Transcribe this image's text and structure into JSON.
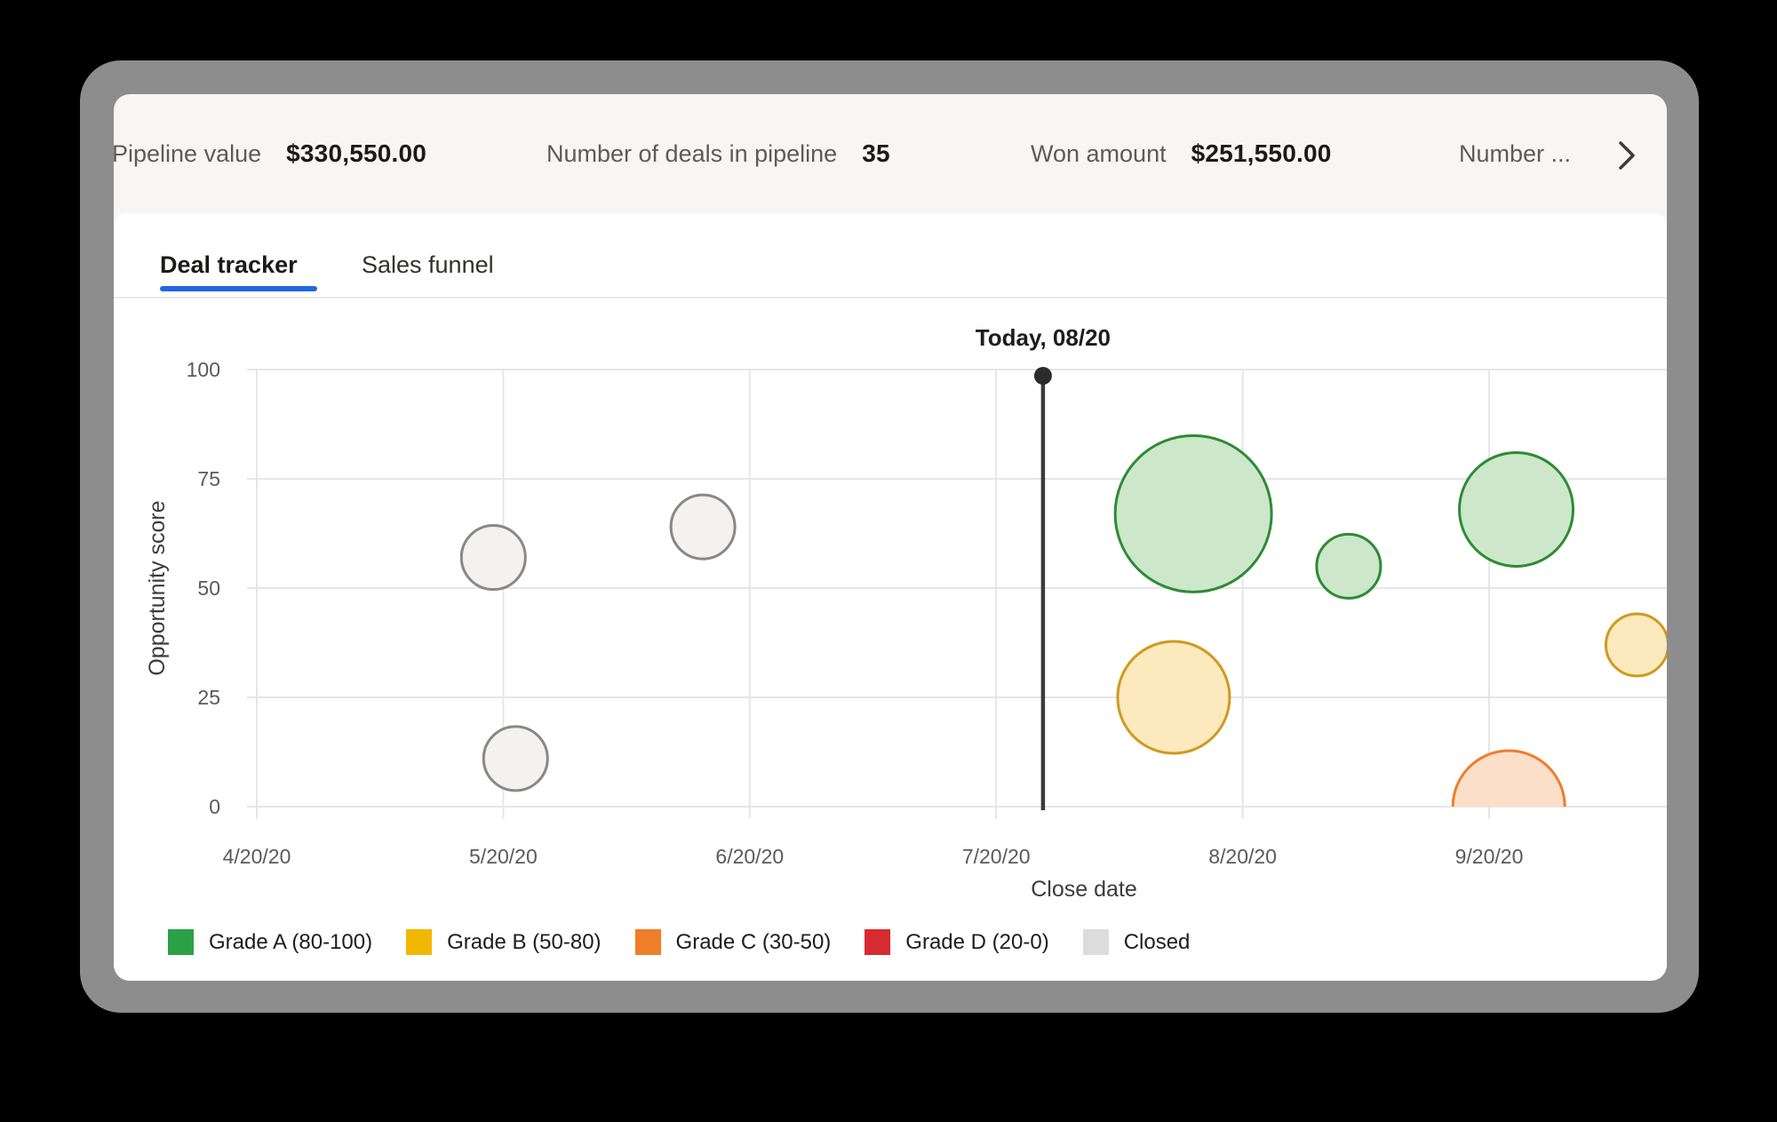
{
  "stats_bar": {
    "items": [
      {
        "label": "Pipeline value",
        "value": "$330,550.00"
      },
      {
        "label": "Number of deals in pipeline",
        "value": "35"
      },
      {
        "label": "Won amount",
        "value": "$251,550.00"
      },
      {
        "label": "Number ...",
        "value": ""
      }
    ],
    "overflow_icon": "chevron-right-icon"
  },
  "tabs": [
    {
      "label": "Deal tracker",
      "active": true
    },
    {
      "label": "Sales funnel",
      "active": false
    }
  ],
  "chart_data": {
    "type": "scatter",
    "subtype": "bubble",
    "title": "Deal tracker",
    "xlabel": "Close date",
    "ylabel": "Opportunity score",
    "x_ticks": [
      "4/20/20",
      "5/20/20",
      "6/20/20",
      "7/20/20",
      "8/20/20",
      "9/20/20"
    ],
    "y_ticks": [
      0,
      25,
      50,
      75,
      100
    ],
    "ylim": [
      0,
      100
    ],
    "grid": true,
    "legend_position": "bottom",
    "today_marker": {
      "label": "Today, 08/20",
      "x_index": 3.19
    },
    "points": [
      {
        "grade": "Closed",
        "x_index": 0.96,
        "score": 57,
        "r": 36
      },
      {
        "grade": "Closed",
        "x_index": 1.05,
        "score": 11,
        "r": 36
      },
      {
        "grade": "Closed",
        "x_index": 1.81,
        "score": 64,
        "r": 36
      },
      {
        "grade": "A",
        "x_index": 3.8,
        "score": 67,
        "r": 88
      },
      {
        "grade": "B",
        "x_index": 3.72,
        "score": 25,
        "r": 63
      },
      {
        "grade": "A",
        "x_index": 4.43,
        "score": 55,
        "r": 36
      },
      {
        "grade": "C",
        "x_index": 5.08,
        "score": 0,
        "r": 63
      },
      {
        "grade": "A",
        "x_index": 5.11,
        "score": 68,
        "r": 64
      },
      {
        "grade": "B",
        "x_index": 5.6,
        "score": 37,
        "r": 35
      }
    ],
    "bubble_styles": {
      "A": {
        "fill": "#cde7cb",
        "stroke": "#2e8b34"
      },
      "B": {
        "fill": "#fce9be",
        "stroke": "#d09a1e"
      },
      "C": {
        "fill": "#fbdfc8",
        "stroke": "#ee7d2e"
      },
      "D": {
        "fill": "#f2c4c6",
        "stroke": "#d62b30"
      },
      "Closed": {
        "fill": "#f3f2f1",
        "stroke": "#8a8886"
      }
    },
    "legend": [
      {
        "label": "Grade A (80-100)",
        "color": "#2aa147"
      },
      {
        "label": "Grade B (50-80)",
        "color": "#f2b700"
      },
      {
        "label": "Grade C (30-50)",
        "color": "#f07d28"
      },
      {
        "label": "Grade D (20-0)",
        "color": "#d62b30"
      },
      {
        "label": "Closed",
        "color": "#dcdcdc"
      }
    ],
    "colors": {
      "accent_blue": "#2266e3",
      "today_line": "#3a3a3a",
      "bezel_gray": "#8d8d8d"
    }
  }
}
